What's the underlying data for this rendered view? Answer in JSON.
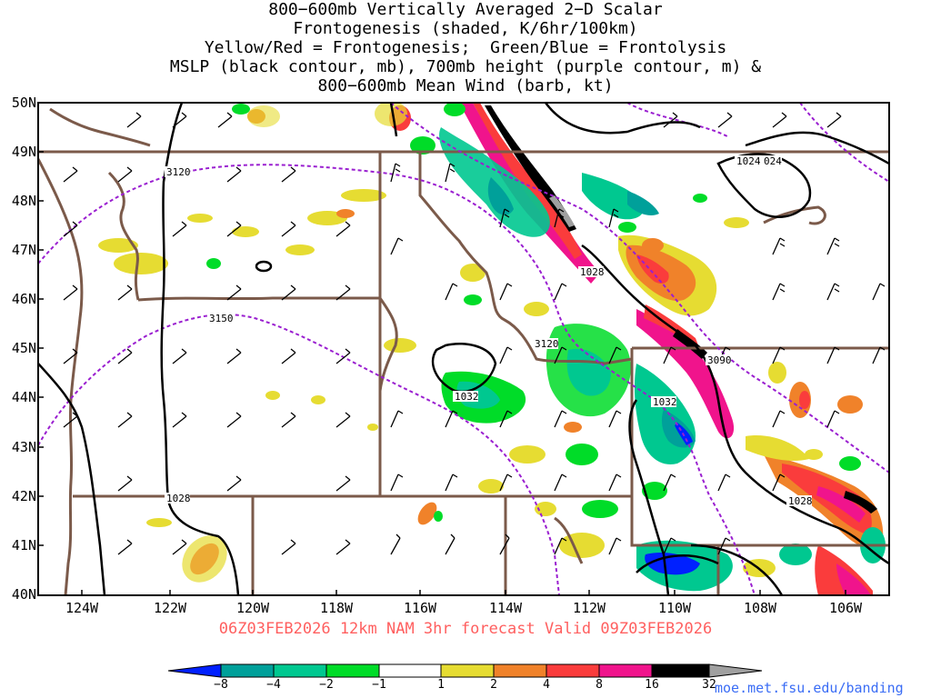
{
  "title_lines": [
    "800−600mb Vertically Averaged 2−D Scalar",
    "Frontogenesis (shaded, K/6hr/100km)",
    "Yellow/Red = Frontogenesis;  Green/Blue = Frontolysis",
    "MSLP (black contour, mb), 700mb height (purple contour, m) &",
    "800−600mb Mean Wind (barb, kt)"
  ],
  "lat_labels": [
    "50N",
    "49N",
    "48N",
    "47N",
    "46N",
    "45N",
    "44N",
    "43N",
    "42N",
    "41N",
    "40N"
  ],
  "lon_labels": [
    "124W",
    "122W",
    "120W",
    "118W",
    "116W",
    "114W",
    "112W",
    "110W",
    "108W",
    "106W"
  ],
  "forecast_text": "06Z03FEB2026 12km NAM 3hr forecast Valid 09Z03FEB2026",
  "colorbar": {
    "labels": [
      "−8",
      "−4",
      "−2",
      "−1",
      "1",
      "2",
      "4",
      "8",
      "16",
      "32"
    ],
    "colors": [
      "#0020ff",
      "#00a09a",
      "#00c890",
      "#00dc28",
      "#ffffff",
      "#e6dc32",
      "#f0822a",
      "#fa3c3c",
      "#f0148c",
      "#000000",
      "#a0a0a0"
    ]
  },
  "contour_labels": {
    "mslp": [
      "1024",
      "024",
      "1028",
      "1032",
      "1032",
      "1028",
      "1028"
    ],
    "height": [
      "3120",
      "3150",
      "3120",
      "3090"
    ]
  },
  "colors": {
    "mslp": "#000000",
    "height": "#9a1fd0",
    "borders": "#7b5a4a",
    "frame": "#000000"
  },
  "credit": "moe.met.fsu.edu/banding"
}
